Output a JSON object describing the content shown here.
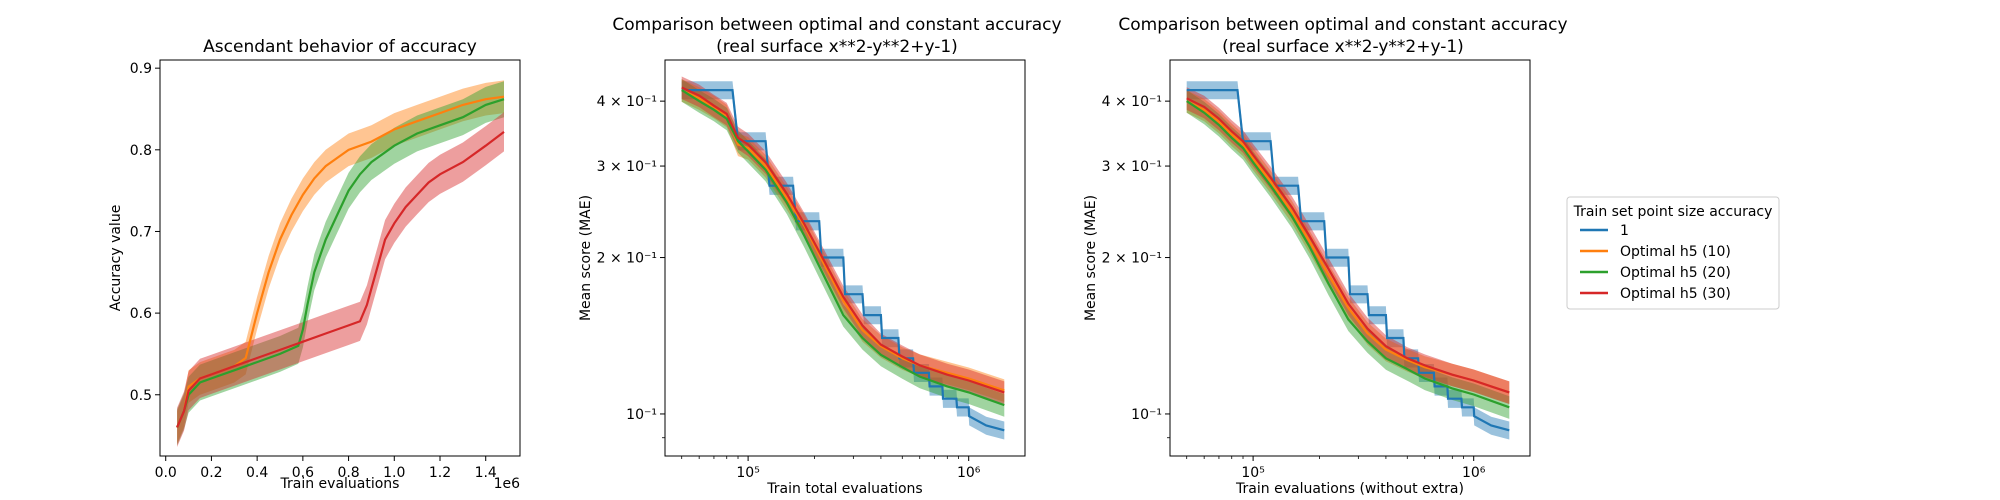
{
  "colors": {
    "blue": "#1f77b4",
    "orange": "#ff7f0e",
    "green": "#2ca02c",
    "red": "#d62728"
  },
  "legend": {
    "title": "Train set point size accuracy",
    "items": [
      {
        "label": "1",
        "color": "#1f77b4"
      },
      {
        "label": "Optimal h5 (10)",
        "color": "#ff7f0e"
      },
      {
        "label": "Optimal h5 (20)",
        "color": "#2ca02c"
      },
      {
        "label": "Optimal h5 (30)",
        "color": "#d62728"
      }
    ]
  },
  "chart_data": [
    {
      "type": "line",
      "title": "Ascendant behavior of accuracy",
      "xlabel": "Train evaluations",
      "ylabel": "Accuracy value",
      "x_offset_label": "1e6",
      "xscale": "linear",
      "yscale": "linear",
      "xlim": [
        -0.025,
        1.55
      ],
      "ylim": [
        0.425,
        0.91
      ],
      "xticks": [
        0.0,
        0.2,
        0.4,
        0.6,
        0.8,
        1.0,
        1.2,
        1.4
      ],
      "xtick_labels": [
        "0.0",
        "0.2",
        "0.4",
        "0.6",
        "0.8",
        "1.0",
        "1.2",
        "1.4"
      ],
      "yticks": [
        0.5,
        0.6,
        0.7,
        0.8,
        0.9
      ],
      "ytick_labels": [
        "0.5",
        "0.6",
        "0.7",
        "0.8",
        "0.9"
      ],
      "grid": false,
      "series": [
        {
          "color": "#ff7f0e",
          "x": [
            0.05,
            0.08,
            0.1,
            0.15,
            0.2,
            0.25,
            0.3,
            0.35,
            0.4,
            0.45,
            0.5,
            0.55,
            0.6,
            0.65,
            0.7,
            0.75,
            0.8,
            0.9,
            1.0,
            1.1,
            1.2,
            1.3,
            1.4,
            1.48
          ],
          "y": [
            0.46,
            0.48,
            0.51,
            0.52,
            0.525,
            0.53,
            0.535,
            0.545,
            0.6,
            0.65,
            0.69,
            0.72,
            0.745,
            0.765,
            0.78,
            0.79,
            0.8,
            0.81,
            0.825,
            0.835,
            0.845,
            0.855,
            0.862,
            0.865
          ],
          "band": 0.02
        },
        {
          "color": "#2ca02c",
          "x": [
            0.05,
            0.08,
            0.1,
            0.15,
            0.2,
            0.3,
            0.4,
            0.5,
            0.58,
            0.6,
            0.62,
            0.65,
            0.7,
            0.75,
            0.8,
            0.85,
            0.9,
            1.0,
            1.1,
            1.2,
            1.3,
            1.4,
            1.48
          ],
          "y": [
            0.46,
            0.48,
            0.5,
            0.515,
            0.52,
            0.53,
            0.54,
            0.55,
            0.56,
            0.58,
            0.61,
            0.65,
            0.69,
            0.72,
            0.75,
            0.77,
            0.785,
            0.805,
            0.82,
            0.83,
            0.84,
            0.855,
            0.862
          ],
          "band": 0.022
        },
        {
          "color": "#d62728",
          "x": [
            0.05,
            0.08,
            0.1,
            0.15,
            0.2,
            0.3,
            0.4,
            0.5,
            0.6,
            0.7,
            0.8,
            0.85,
            0.88,
            0.9,
            0.93,
            0.96,
            1.0,
            1.05,
            1.1,
            1.15,
            1.2,
            1.3,
            1.4,
            1.48
          ],
          "y": [
            0.46,
            0.48,
            0.505,
            0.52,
            0.525,
            0.535,
            0.545,
            0.555,
            0.565,
            0.575,
            0.585,
            0.59,
            0.61,
            0.63,
            0.66,
            0.69,
            0.71,
            0.73,
            0.745,
            0.76,
            0.77,
            0.785,
            0.805,
            0.822
          ],
          "band": 0.024
        }
      ]
    },
    {
      "type": "line",
      "title": "Comparison between optimal and constant accuracy",
      "subtitle": "(real surface x**2-y**2+y-1)",
      "xlabel": "Train total evaluations",
      "ylabel": "Mean score (MAE)",
      "xscale": "log",
      "yscale": "log",
      "xlim": [
        42000,
        1800000
      ],
      "ylim": [
        0.083,
        0.48
      ],
      "xticks": [
        100000,
        1000000
      ],
      "xtick_labels": [
        "10⁵",
        "10⁶"
      ],
      "yticks": [
        0.1,
        0.2,
        0.3,
        0.4
      ],
      "ytick_labels": [
        "10⁻¹",
        "2 × 10⁻¹",
        "3 × 10⁻¹",
        "4 × 10⁻¹"
      ],
      "grid": false,
      "series": [
        {
          "color": "#1f77b4",
          "step": true,
          "x": [
            50000,
            85000,
            90000,
            120000,
            125000,
            160000,
            165000,
            210000,
            215000,
            270000,
            275000,
            330000,
            335000,
            400000,
            405000,
            480000,
            485000,
            560000,
            565000,
            660000,
            665000,
            760000,
            765000,
            880000,
            885000,
            1000000,
            1005000,
            1200000,
            1450000
          ],
          "y": [
            0.42,
            0.42,
            0.335,
            0.335,
            0.275,
            0.275,
            0.235,
            0.235,
            0.2,
            0.2,
            0.17,
            0.17,
            0.155,
            0.155,
            0.14,
            0.14,
            0.128,
            0.128,
            0.12,
            0.12,
            0.113,
            0.113,
            0.107,
            0.107,
            0.103,
            0.103,
            0.099,
            0.095,
            0.093
          ],
          "band": 0.04
        },
        {
          "color": "#ff7f0e",
          "x": [
            50000,
            60000,
            70000,
            80000,
            90000,
            100000,
            120000,
            150000,
            180000,
            220000,
            270000,
            330000,
            400000,
            500000,
            600000,
            800000,
            1000000,
            1200000,
            1450000
          ],
          "y": [
            0.42,
            0.405,
            0.39,
            0.375,
            0.33,
            0.325,
            0.3,
            0.26,
            0.23,
            0.195,
            0.165,
            0.145,
            0.135,
            0.128,
            0.124,
            0.12,
            0.117,
            0.114,
            0.111
          ],
          "band": 0.05
        },
        {
          "color": "#2ca02c",
          "x": [
            50000,
            60000,
            70000,
            80000,
            90000,
            100000,
            120000,
            150000,
            180000,
            220000,
            270000,
            330000,
            400000,
            500000,
            600000,
            800000,
            1000000,
            1200000,
            1450000
          ],
          "y": [
            0.42,
            0.4,
            0.385,
            0.37,
            0.335,
            0.32,
            0.295,
            0.255,
            0.22,
            0.185,
            0.155,
            0.14,
            0.13,
            0.123,
            0.118,
            0.113,
            0.11,
            0.107,
            0.104
          ],
          "band": 0.05
        },
        {
          "color": "#d62728",
          "x": [
            50000,
            60000,
            70000,
            80000,
            90000,
            100000,
            120000,
            150000,
            180000,
            220000,
            270000,
            330000,
            400000,
            500000,
            600000,
            800000,
            1000000,
            1200000,
            1450000
          ],
          "y": [
            0.425,
            0.41,
            0.392,
            0.378,
            0.34,
            0.33,
            0.305,
            0.265,
            0.232,
            0.198,
            0.168,
            0.148,
            0.136,
            0.129,
            0.124,
            0.119,
            0.116,
            0.113,
            0.11
          ],
          "band": 0.05
        }
      ]
    },
    {
      "type": "line",
      "title": "Comparison between optimal and constant accuracy",
      "subtitle": "(real surface x**2-y**2+y-1)",
      "xlabel": "Train evaluations (without extra)",
      "ylabel": "Mean score (MAE)",
      "xscale": "log",
      "yscale": "log",
      "xlim": [
        42000,
        1800000
      ],
      "ylim": [
        0.083,
        0.48
      ],
      "xticks": [
        100000,
        1000000
      ],
      "xtick_labels": [
        "10⁵",
        "10⁶"
      ],
      "yticks": [
        0.1,
        0.2,
        0.3,
        0.4
      ],
      "ytick_labels": [
        "10⁻¹",
        "2 × 10⁻¹",
        "3 × 10⁻¹",
        "4 × 10⁻¹"
      ],
      "grid": false,
      "series": [
        {
          "color": "#1f77b4",
          "step": true,
          "x": [
            50000,
            85000,
            90000,
            120000,
            125000,
            160000,
            165000,
            210000,
            215000,
            270000,
            275000,
            330000,
            335000,
            400000,
            405000,
            480000,
            485000,
            560000,
            565000,
            660000,
            665000,
            760000,
            765000,
            880000,
            885000,
            1000000,
            1005000,
            1200000,
            1450000
          ],
          "y": [
            0.42,
            0.42,
            0.335,
            0.335,
            0.275,
            0.275,
            0.235,
            0.235,
            0.2,
            0.2,
            0.17,
            0.17,
            0.155,
            0.155,
            0.14,
            0.14,
            0.128,
            0.128,
            0.12,
            0.12,
            0.113,
            0.113,
            0.107,
            0.107,
            0.103,
            0.103,
            0.099,
            0.095,
            0.093
          ],
          "band": 0.04
        },
        {
          "color": "#ff7f0e",
          "x": [
            50000,
            60000,
            70000,
            80000,
            90000,
            100000,
            120000,
            150000,
            180000,
            220000,
            270000,
            330000,
            400000,
            500000,
            600000,
            800000,
            1000000,
            1200000,
            1450000
          ],
          "y": [
            0.4,
            0.385,
            0.365,
            0.345,
            0.33,
            0.31,
            0.28,
            0.245,
            0.215,
            0.185,
            0.16,
            0.143,
            0.133,
            0.127,
            0.123,
            0.119,
            0.116,
            0.113,
            0.11
          ],
          "band": 0.05
        },
        {
          "color": "#2ca02c",
          "x": [
            50000,
            60000,
            70000,
            80000,
            90000,
            100000,
            120000,
            150000,
            180000,
            220000,
            270000,
            330000,
            400000,
            500000,
            600000,
            800000,
            1000000,
            1200000,
            1450000
          ],
          "y": [
            0.4,
            0.38,
            0.36,
            0.34,
            0.325,
            0.305,
            0.275,
            0.24,
            0.21,
            0.178,
            0.152,
            0.138,
            0.128,
            0.122,
            0.117,
            0.112,
            0.109,
            0.106,
            0.103
          ],
          "band": 0.05
        },
        {
          "color": "#d62728",
          "x": [
            50000,
            60000,
            70000,
            80000,
            90000,
            100000,
            120000,
            150000,
            180000,
            220000,
            270000,
            330000,
            400000,
            500000,
            600000,
            800000,
            1000000,
            1200000,
            1450000
          ],
          "y": [
            0.405,
            0.39,
            0.37,
            0.35,
            0.335,
            0.315,
            0.285,
            0.25,
            0.22,
            0.19,
            0.163,
            0.146,
            0.135,
            0.128,
            0.124,
            0.119,
            0.116,
            0.113,
            0.11
          ],
          "band": 0.05
        }
      ]
    }
  ]
}
